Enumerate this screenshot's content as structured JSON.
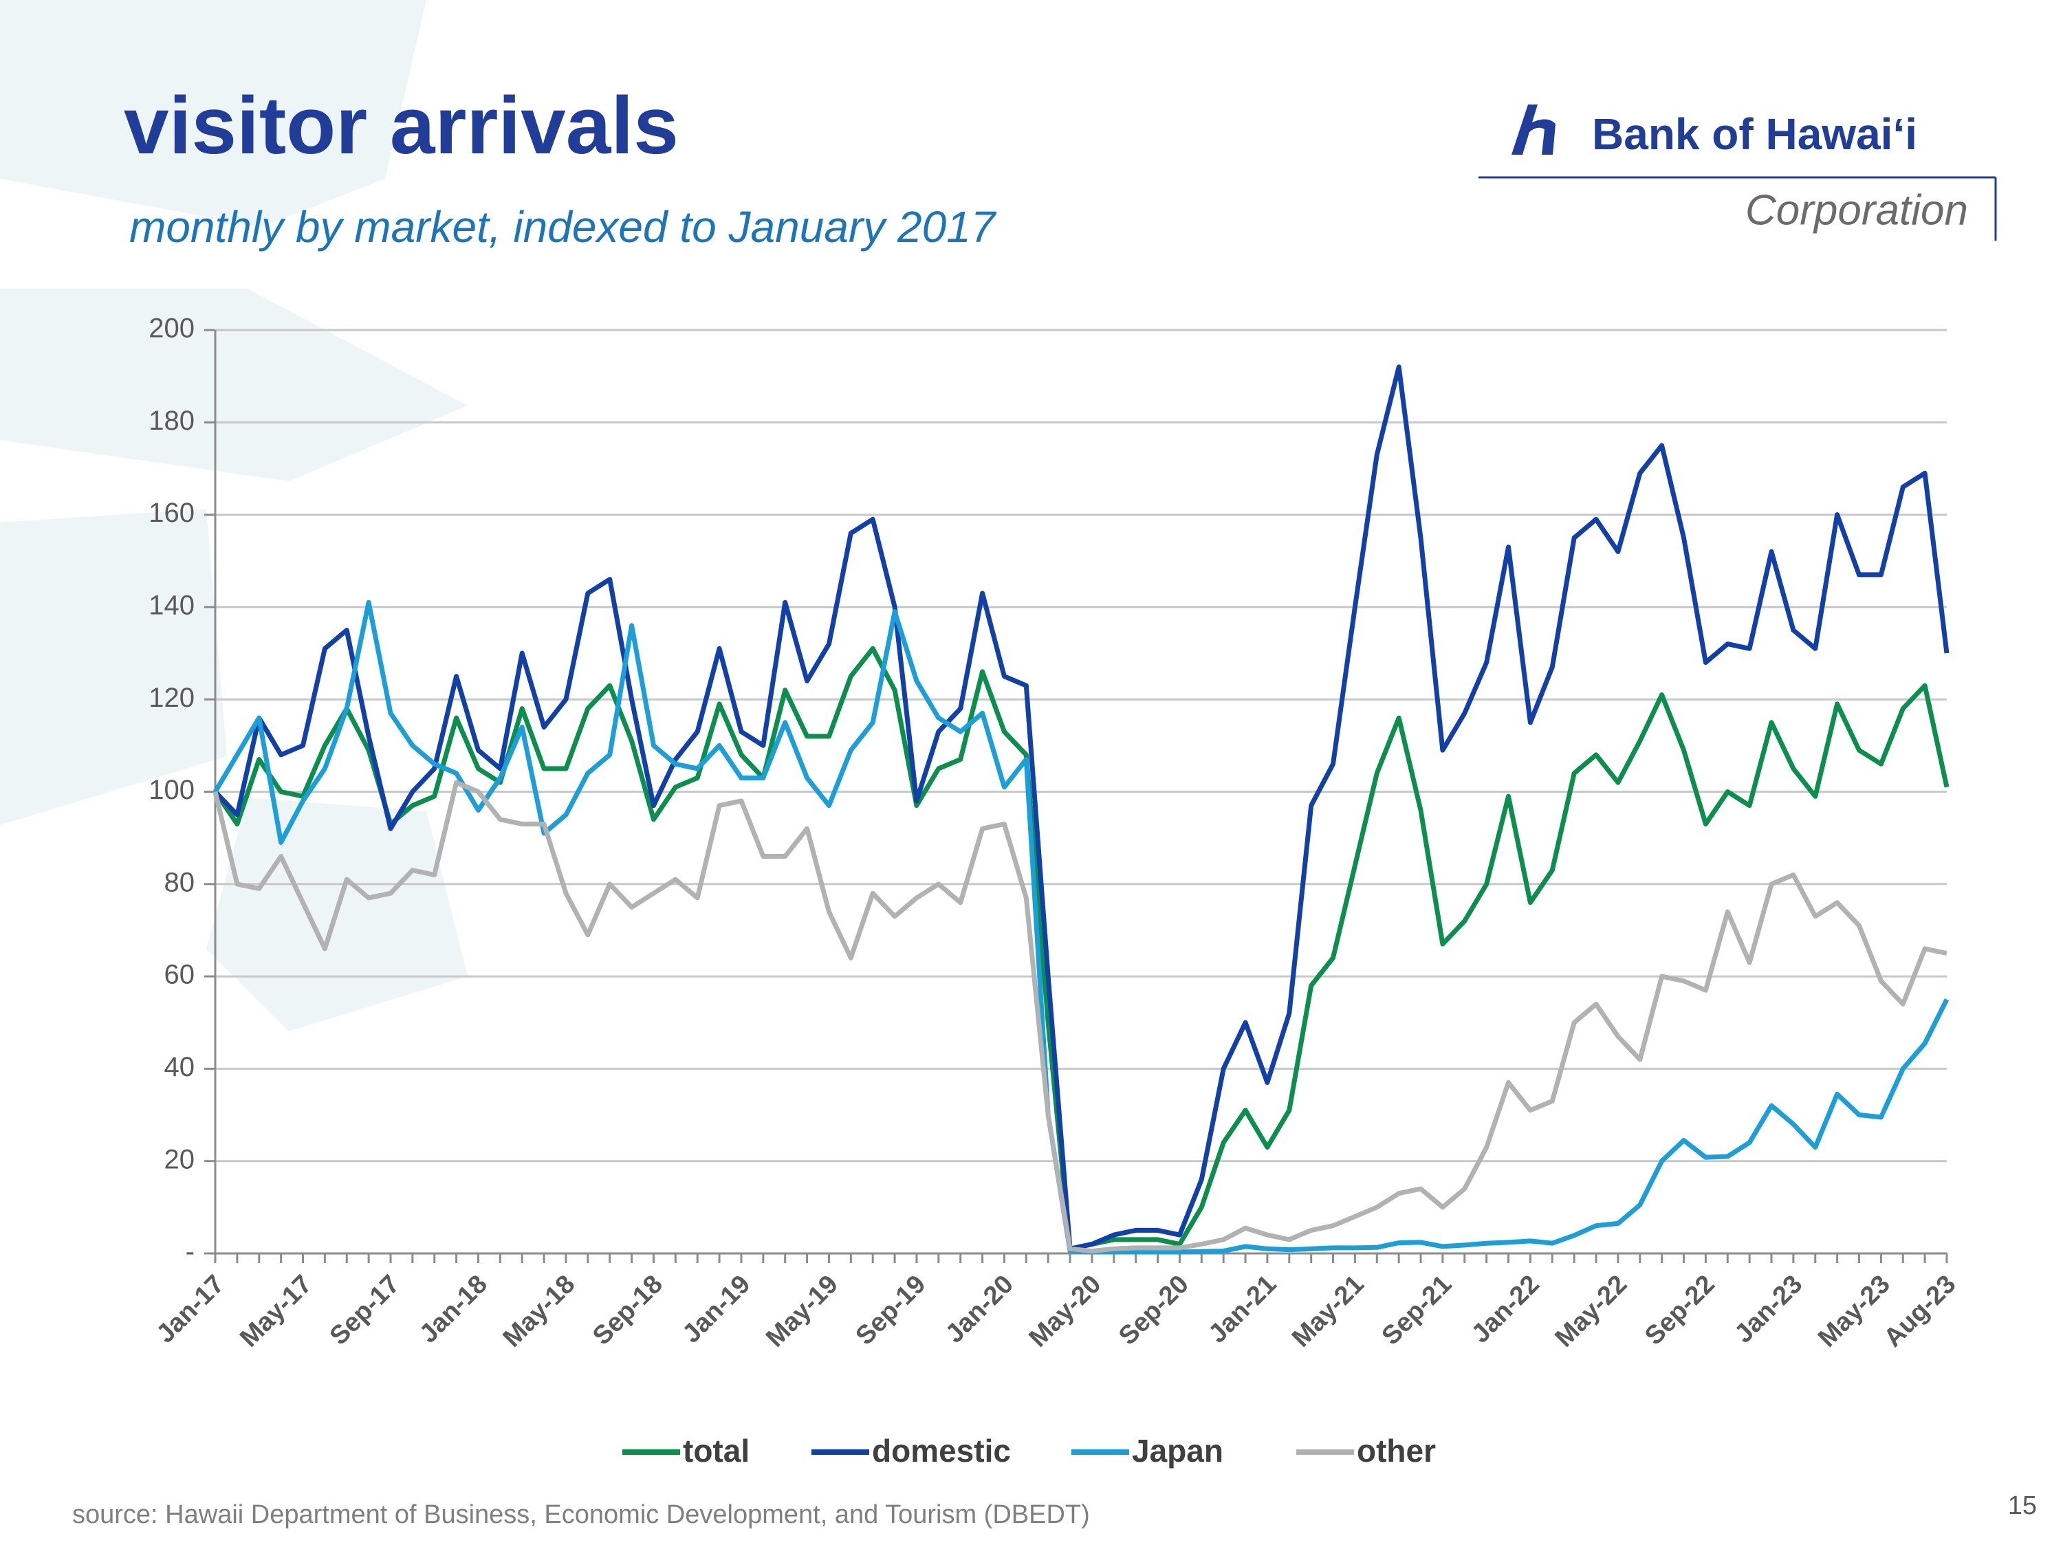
{
  "chart_data": {
    "type": "line",
    "title": "visitor arrivals",
    "subtitle": "monthly by market, indexed to January 2017",
    "categories": [
      "Jan-17",
      null,
      null,
      null,
      "May-17",
      null,
      null,
      null,
      "Sep-17",
      null,
      null,
      null,
      "Jan-18",
      null,
      null,
      null,
      "May-18",
      null,
      null,
      null,
      "Sep-18",
      null,
      null,
      null,
      "Jan-19",
      null,
      null,
      null,
      "May-19",
      null,
      null,
      null,
      "Sep-19",
      null,
      null,
      null,
      "Jan-20",
      null,
      null,
      null,
      "May-20",
      null,
      null,
      null,
      "Sep-20",
      null,
      null,
      null,
      "Jan-21",
      null,
      null,
      null,
      "May-21",
      null,
      null,
      null,
      "Sep-21",
      null,
      null,
      null,
      "Jan-22",
      null,
      null,
      null,
      "May-22",
      null,
      null,
      null,
      "Sep-22",
      null,
      null,
      null,
      "Jan-23",
      null,
      null,
      null,
      "May-23",
      null,
      null,
      "Aug-23"
    ],
    "series": [
      {
        "name": "total",
        "color": "#0b8f4d",
        "values": [
          100,
          93,
          107,
          100,
          99,
          110,
          118,
          109,
          93,
          97,
          99,
          116,
          105,
          102,
          118,
          105,
          105,
          118,
          123,
          111,
          94,
          101,
          103,
          119,
          108,
          103,
          122,
          112,
          112,
          125,
          131,
          122,
          97,
          105,
          107,
          126,
          113,
          108,
          50,
          1,
          2,
          3,
          3,
          3,
          2,
          10,
          24,
          31,
          23,
          31,
          58,
          64,
          84,
          104,
          116,
          96,
          67,
          72,
          80,
          99,
          76,
          83,
          104,
          108,
          102,
          111,
          121,
          109,
          93,
          100,
          97,
          115,
          105,
          99,
          119,
          109,
          106,
          118,
          123,
          101
        ]
      },
      {
        "name": "domestic",
        "color": "#1140ab",
        "values": [
          100,
          95,
          116,
          108,
          110,
          131,
          135,
          112,
          92,
          100,
          105,
          125,
          109,
          105,
          130,
          114,
          120,
          143,
          146,
          120,
          97,
          107,
          113,
          131,
          113,
          110,
          141,
          124,
          132,
          156,
          159,
          140,
          98,
          113,
          118,
          143,
          125,
          123,
          60,
          1,
          2,
          4,
          5,
          5,
          4,
          16,
          40,
          50,
          37,
          52,
          97,
          106,
          140,
          173,
          192,
          155,
          109,
          117,
          128,
          153,
          115,
          127,
          155,
          159,
          152,
          169,
          175,
          155,
          128,
          132,
          131,
          152,
          135,
          131,
          160,
          147,
          147,
          166,
          169,
          130
        ]
      },
      {
        "name": "Japan",
        "color": "#1a9fdb",
        "values": [
          100,
          108,
          116,
          89,
          98,
          105,
          118,
          141,
          117,
          110,
          106,
          104,
          96,
          103,
          114,
          91,
          95,
          104,
          108,
          136,
          110,
          106,
          105,
          110,
          103,
          103,
          115,
          103,
          97,
          109,
          115,
          139,
          124,
          116,
          113,
          117,
          101,
          107,
          30,
          0.5,
          0.3,
          0.3,
          0.3,
          0.3,
          0.3,
          0.4,
          0.5,
          1.5,
          1,
          0.8,
          1,
          1.2,
          1.2,
          1.3,
          2.3,
          2.4,
          1.5,
          1.8,
          2.2,
          2.4,
          2.7,
          2.2,
          3.9,
          6,
          6.5,
          10.5,
          20,
          24.5,
          20.8,
          21,
          24,
          32,
          28,
          23,
          34.5,
          30,
          29.5,
          40,
          45.5,
          55
        ]
      },
      {
        "name": "other",
        "color": "#b2b2b2",
        "values": [
          100,
          80,
          79,
          86,
          76,
          66,
          81,
          77,
          78,
          83,
          82,
          102,
          100,
          94,
          93,
          93,
          78,
          69,
          80,
          75,
          78,
          81,
          77,
          97,
          98,
          86,
          86,
          92,
          74,
          64,
          78,
          73,
          77,
          80,
          76,
          92,
          93,
          77,
          30,
          1,
          0.5,
          1,
          1.2,
          1.2,
          1.2,
          2,
          3,
          5.5,
          4,
          3,
          5,
          6,
          8,
          10,
          13,
          14,
          10,
          14,
          23,
          37,
          31,
          33,
          50,
          54,
          47,
          42,
          60,
          59,
          57,
          74,
          63,
          80,
          82,
          73,
          76,
          71,
          59,
          54,
          66,
          65
        ]
      }
    ],
    "ylim": [
      0,
      200
    ],
    "yticks": [
      {
        "value": 0,
        "label": "-"
      },
      20,
      40,
      60,
      80,
      100,
      120,
      140,
      160,
      180,
      200
    ],
    "grid": true,
    "legend": "bottom"
  },
  "logo": {
    "name": "Bank of Hawaiʻi",
    "suffix": "Corporation"
  },
  "footer": {
    "source": "source: Hawaii Department of Business, Economic Development, and Tourism (DBEDT)",
    "page": "15"
  }
}
